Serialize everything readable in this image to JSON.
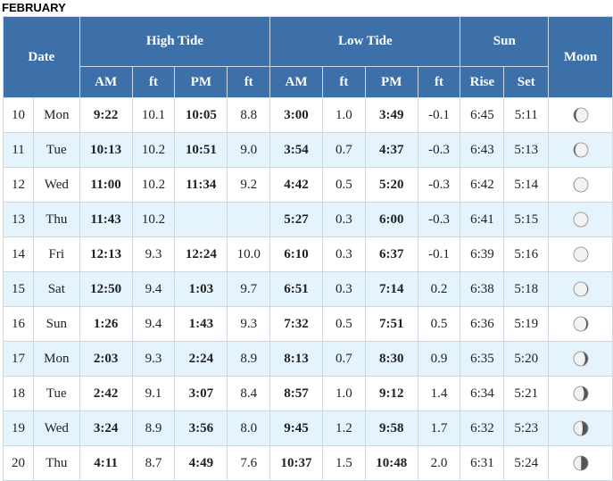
{
  "month": "FEBRUARY",
  "headers": {
    "date": "Date",
    "high_tide": "High Tide",
    "low_tide": "Low Tide",
    "sun": "Sun",
    "moon": "Moon",
    "am": "AM",
    "ft": "ft",
    "pm": "PM",
    "rise": "Rise",
    "set": "Set"
  },
  "rows": [
    {
      "day": "10",
      "dow": "Mon",
      "high_am": "9:22",
      "high_am_ft": "10.1",
      "high_pm": "10:05",
      "high_pm_ft": "8.8",
      "low_am": "3:00",
      "low_am_ft": "1.0",
      "low_pm": "3:49",
      "low_pm_ft": "-0.1",
      "rise": "6:45",
      "set": "5:11",
      "moon_icon": "moon-waxing-gibbous-icon",
      "moon_lit": 0.85,
      "moon_waning": false
    },
    {
      "day": "11",
      "dow": "Tue",
      "high_am": "10:13",
      "high_am_ft": "10.2",
      "high_pm": "10:51",
      "high_pm_ft": "9.0",
      "low_am": "3:54",
      "low_am_ft": "0.7",
      "low_pm": "4:37",
      "low_pm_ft": "-0.3",
      "rise": "6:43",
      "set": "5:13",
      "moon_icon": "moon-waxing-gibbous-icon",
      "moon_lit": 0.9,
      "moon_waning": false
    },
    {
      "day": "12",
      "dow": "Wed",
      "high_am": "11:00",
      "high_am_ft": "10.2",
      "high_pm": "11:34",
      "high_pm_ft": "9.2",
      "low_am": "4:42",
      "low_am_ft": "0.5",
      "low_pm": "5:20",
      "low_pm_ft": "-0.3",
      "rise": "6:42",
      "set": "5:14",
      "moon_icon": "moon-full-icon",
      "moon_lit": 0.97,
      "moon_waning": false
    },
    {
      "day": "13",
      "dow": "Thu",
      "high_am": "11:43",
      "high_am_ft": "10.2",
      "high_pm": "",
      "high_pm_ft": "",
      "low_am": "5:27",
      "low_am_ft": "0.3",
      "low_pm": "6:00",
      "low_pm_ft": "-0.3",
      "rise": "6:41",
      "set": "5:15",
      "moon_icon": "moon-full-icon",
      "moon_lit": 1.0,
      "moon_waning": false
    },
    {
      "day": "14",
      "dow": "Fri",
      "high_am": "12:13",
      "high_am_ft": "9.3",
      "high_pm": "12:24",
      "high_pm_ft": "10.0",
      "low_am": "6:10",
      "low_am_ft": "0.3",
      "low_pm": "6:37",
      "low_pm_ft": "-0.1",
      "rise": "6:39",
      "set": "5:16",
      "moon_icon": "moon-full-icon",
      "moon_lit": 0.98,
      "moon_waning": true
    },
    {
      "day": "15",
      "dow": "Sat",
      "high_am": "12:50",
      "high_am_ft": "9.4",
      "high_pm": "1:03",
      "high_pm_ft": "9.7",
      "low_am": "6:51",
      "low_am_ft": "0.3",
      "low_pm": "7:14",
      "low_pm_ft": "0.2",
      "rise": "6:38",
      "set": "5:18",
      "moon_icon": "moon-waning-gibbous-icon",
      "moon_lit": 0.94,
      "moon_waning": true
    },
    {
      "day": "16",
      "dow": "Sun",
      "high_am": "1:26",
      "high_am_ft": "9.4",
      "high_pm": "1:43",
      "high_pm_ft": "9.3",
      "low_am": "7:32",
      "low_am_ft": "0.5",
      "low_pm": "7:51",
      "low_pm_ft": "0.5",
      "rise": "6:36",
      "set": "5:19",
      "moon_icon": "moon-waning-gibbous-icon",
      "moon_lit": 0.88,
      "moon_waning": true
    },
    {
      "day": "17",
      "dow": "Mon",
      "high_am": "2:03",
      "high_am_ft": "9.3",
      "high_pm": "2:24",
      "high_pm_ft": "8.9",
      "low_am": "8:13",
      "low_am_ft": "0.7",
      "low_pm": "8:30",
      "low_pm_ft": "0.9",
      "rise": "6:35",
      "set": "5:20",
      "moon_icon": "moon-waning-gibbous-icon",
      "moon_lit": 0.8,
      "moon_waning": true
    },
    {
      "day": "18",
      "dow": "Tue",
      "high_am": "2:42",
      "high_am_ft": "9.1",
      "high_pm": "3:07",
      "high_pm_ft": "8.4",
      "low_am": "8:57",
      "low_am_ft": "1.0",
      "low_pm": "9:12",
      "low_pm_ft": "1.4",
      "rise": "6:34",
      "set": "5:21",
      "moon_icon": "moon-waning-gibbous-icon",
      "moon_lit": 0.72,
      "moon_waning": true
    },
    {
      "day": "19",
      "dow": "Wed",
      "high_am": "3:24",
      "high_am_ft": "8.9",
      "high_pm": "3:56",
      "high_pm_ft": "8.0",
      "low_am": "9:45",
      "low_am_ft": "1.2",
      "low_pm": "9:58",
      "low_pm_ft": "1.7",
      "rise": "6:32",
      "set": "5:23",
      "moon_icon": "moon-waning-gibbous-icon",
      "moon_lit": 0.62,
      "moon_waning": true
    },
    {
      "day": "20",
      "dow": "Thu",
      "high_am": "4:11",
      "high_am_ft": "8.7",
      "high_pm": "4:49",
      "high_pm_ft": "7.6",
      "low_am": "10:37",
      "low_am_ft": "1.5",
      "low_pm": "10:48",
      "low_pm_ft": "2.0",
      "rise": "6:31",
      "set": "5:24",
      "moon_icon": "moon-last-quarter-icon",
      "moon_lit": 0.52,
      "moon_waning": true
    }
  ]
}
